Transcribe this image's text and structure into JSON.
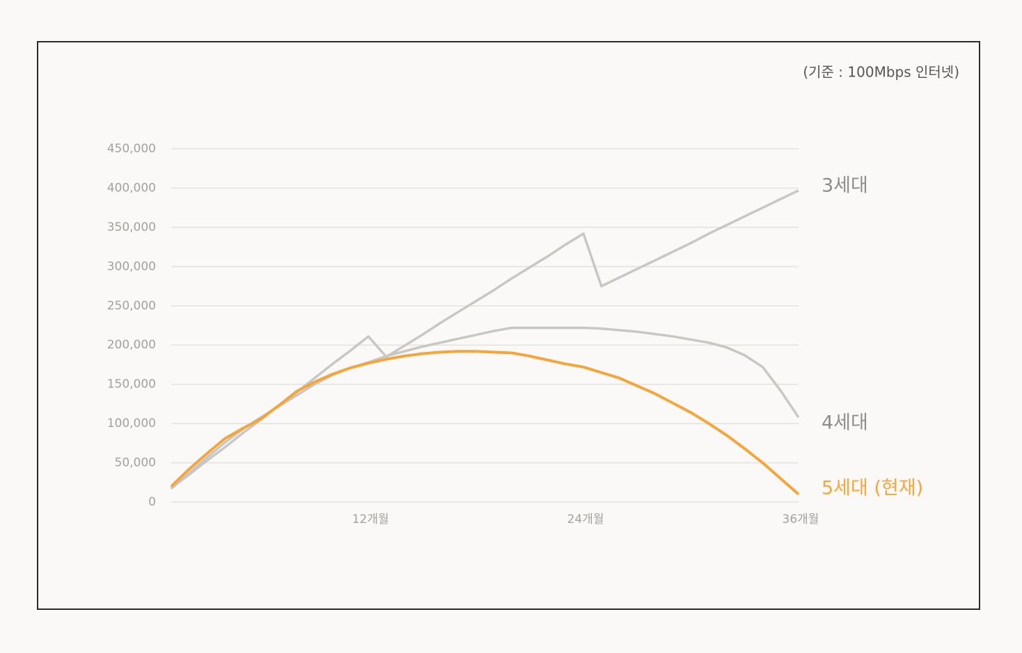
{
  "chart_data": {
    "type": "line",
    "annotation": "(기준 : 100Mbps 인터넷)",
    "x": [
      1,
      2,
      3,
      4,
      5,
      6,
      7,
      8,
      9,
      10,
      11,
      12,
      13,
      14,
      15,
      16,
      17,
      18,
      19,
      20,
      21,
      22,
      23,
      24,
      25,
      26,
      27,
      28,
      29,
      30,
      31,
      32,
      33,
      34,
      35,
      36
    ],
    "xlim": [
      1,
      36
    ],
    "xticks": [
      {
        "value": 12,
        "label": "12개월"
      },
      {
        "value": 24,
        "label": "24개월"
      },
      {
        "value": 36,
        "label": "36개월"
      }
    ],
    "ylim": [
      0,
      450000
    ],
    "yticks": [
      0,
      {
        "value": 50000,
        "label": "50,000"
      },
      {
        "value": 100000,
        "label": "100,000"
      },
      {
        "value": 150000,
        "label": "150,000"
      },
      {
        "value": 200000,
        "label": "200,000"
      },
      {
        "value": 250000,
        "label": "250,000"
      },
      {
        "value": 300000,
        "label": "300,000"
      },
      {
        "value": 350000,
        "label": "350,000"
      },
      {
        "value": 400000,
        "label": "400,000"
      },
      {
        "value": 450000,
        "label": "450,000"
      }
    ],
    "grid": true,
    "series": [
      {
        "name": "3세대",
        "color": "#c9c7c3",
        "values": [
          18000,
          35000,
          53000,
          70000,
          88000,
          105000,
          123000,
          140000,
          158000,
          176000,
          193000,
          211000,
          185000,
          199000,
          213000,
          228000,
          242000,
          256000,
          270000,
          285000,
          299000,
          313000,
          328000,
          342000,
          275000,
          286000,
          297000,
          308000,
          319000,
          330000,
          342000,
          353000,
          364000,
          375000,
          386000,
          397000
        ]
      },
      {
        "name": "4세대",
        "color": "#c9c7c3",
        "values": [
          17000,
          37000,
          57000,
          76000,
          93000,
          108000,
          122000,
          136000,
          150000,
          162000,
          171000,
          178000,
          186000,
          192000,
          198000,
          203000,
          208000,
          213000,
          218000,
          222000,
          222000,
          222000,
          222000,
          222000,
          221000,
          219000,
          217000,
          214000,
          211000,
          207000,
          203000,
          197000,
          187000,
          172000,
          142000,
          108000
        ]
      },
      {
        "name": "5세대 (현재)",
        "color": "#f5a53a",
        "values": [
          20000,
          42000,
          62000,
          81000,
          94000,
          106000,
          123000,
          141000,
          153000,
          163000,
          171000,
          177000,
          182000,
          186000,
          189000,
          191000,
          192000,
          192000,
          191000,
          190000,
          186000,
          181000,
          176000,
          172000,
          165000,
          158000,
          148000,
          138000,
          126000,
          114000,
          100000,
          85000,
          68000,
          50000,
          30000,
          10000
        ]
      }
    ]
  }
}
